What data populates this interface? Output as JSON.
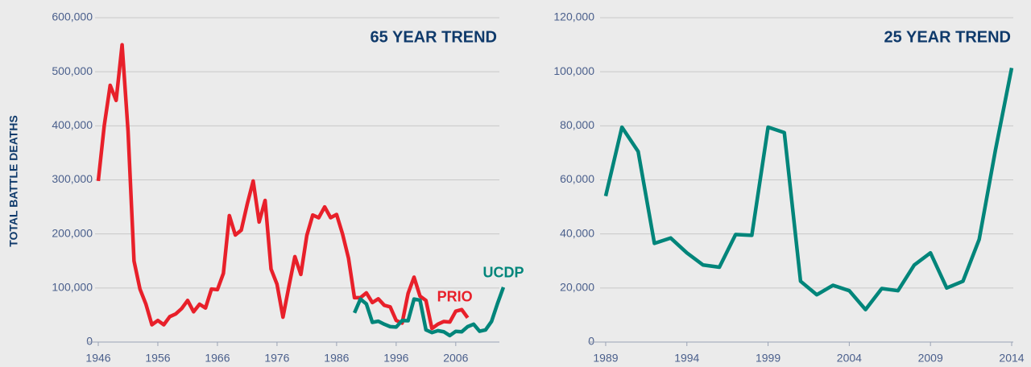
{
  "chart_data": [
    {
      "type": "line",
      "title": "65 YEAR TREND",
      "y_label": "TOTAL BATTLE DEATHS",
      "xlim": [
        1944,
        2014
      ],
      "xticks": [
        1946,
        1956,
        1966,
        1976,
        1986,
        1996,
        2006
      ],
      "ylim": [
        0,
        600000
      ],
      "yticks": [
        0,
        {
          "value": 100000,
          "label": "100,000"
        },
        {
          "value": 200000,
          "label": "200,000"
        },
        {
          "value": 300000,
          "label": "300,000"
        },
        {
          "value": 400000,
          "label": "400,000"
        },
        {
          "value": 500000,
          "label": "500,000"
        },
        {
          "value": 600000,
          "label": "600,000"
        }
      ],
      "grid": true,
      "series": [
        {
          "name": "PRIO",
          "color": "#e8202a",
          "x": [
            1946,
            1947,
            1948,
            1949,
            1950,
            1951,
            1952,
            1953,
            1954,
            1955,
            1956,
            1957,
            1958,
            1959,
            1960,
            1961,
            1962,
            1963,
            1964,
            1965,
            1966,
            1967,
            1968,
            1969,
            1970,
            1971,
            1972,
            1973,
            1974,
            1975,
            1976,
            1977,
            1978,
            1979,
            1980,
            1981,
            1982,
            1983,
            1984,
            1985,
            1986,
            1987,
            1988,
            1989,
            1990,
            1991,
            1992,
            1993,
            1994,
            1995,
            1996,
            1997,
            1998,
            1999,
            2000,
            2001,
            2002,
            2003,
            2004,
            2005,
            2006,
            2007,
            2008
          ],
          "values": [
            298000,
            400000,
            475000,
            447000,
            550000,
            390000,
            150000,
            98000,
            70000,
            32000,
            40000,
            32000,
            47000,
            52000,
            62000,
            77000,
            56000,
            70000,
            63000,
            98000,
            97000,
            127000,
            234000,
            198000,
            207000,
            255000,
            298000,
            222000,
            262000,
            135000,
            107000,
            46000,
            103000,
            158000,
            125000,
            197000,
            235000,
            230000,
            250000,
            230000,
            236000,
            200000,
            155000,
            82000,
            82000,
            91000,
            73000,
            80000,
            68000,
            65000,
            40000,
            35000,
            90000,
            120000,
            85000,
            77000,
            25000,
            33000,
            38000,
            37000,
            57000,
            60000,
            45000
          ]
        },
        {
          "name": "UCDP",
          "color": "#00857a",
          "x": [
            1989,
            1990,
            1991,
            1992,
            1993,
            1994,
            1995,
            1996,
            1997,
            1998,
            1999,
            2000,
            2001,
            2002,
            2003,
            2004,
            2005,
            2006,
            2007,
            2008,
            2009,
            2010,
            2011,
            2012,
            2013,
            2014
          ],
          "values": [
            54000,
            79500,
            70500,
            36500,
            38500,
            33000,
            28500,
            27700,
            39800,
            39500,
            79500,
            77500,
            22500,
            17500,
            21000,
            19000,
            12000,
            19800,
            19000,
            28500,
            33000,
            20000,
            22500,
            38000,
            71000,
            101400
          ]
        }
      ]
    },
    {
      "type": "line",
      "title": "25 YEAR TREND",
      "xlim": [
        1988,
        2014
      ],
      "xticks": [
        1989,
        1994,
        1999,
        2004,
        2009,
        2014
      ],
      "ylim": [
        0,
        120000
      ],
      "yticks": [
        0,
        {
          "value": 20000,
          "label": "20,000"
        },
        {
          "value": 40000,
          "label": "40,000"
        },
        {
          "value": 60000,
          "label": "60,000"
        },
        {
          "value": 80000,
          "label": "80,000"
        },
        {
          "value": 100000,
          "label": "100,000"
        },
        {
          "value": 120000,
          "label": "120,000"
        }
      ],
      "grid": true,
      "series": [
        {
          "color": "#00857a",
          "x": [
            1989,
            1990,
            1991,
            1992,
            1993,
            1994,
            1995,
            1996,
            1997,
            1998,
            1999,
            2000,
            2001,
            2002,
            2003,
            2004,
            2005,
            2006,
            2007,
            2008,
            2009,
            2010,
            2011,
            2012,
            2013,
            2014
          ],
          "values": [
            54000,
            79500,
            70500,
            36500,
            38500,
            33000,
            28500,
            27700,
            39800,
            39500,
            79500,
            77500,
            22500,
            17500,
            21000,
            19000,
            12000,
            19800,
            19000,
            28500,
            33000,
            20000,
            22500,
            38000,
            71000,
            101400
          ]
        }
      ]
    }
  ]
}
